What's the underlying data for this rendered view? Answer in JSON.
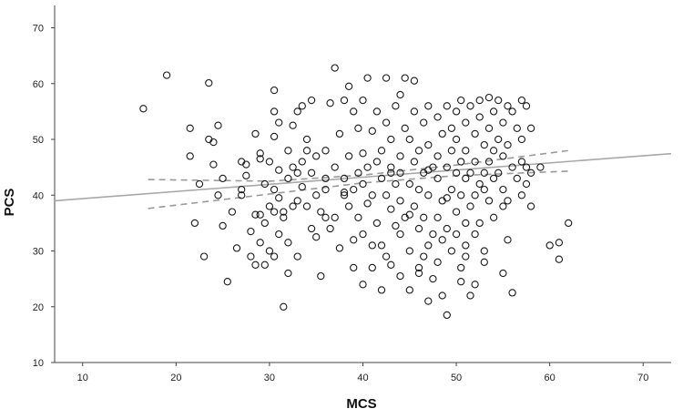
{
  "chart_data": {
    "type": "scatter",
    "title": "",
    "xlabel": "MCS",
    "ylabel": "PCS",
    "xlim": [
      7,
      73
    ],
    "ylim": [
      10,
      74
    ],
    "x_ticks": [
      10,
      20,
      30,
      40,
      50,
      60,
      70
    ],
    "y_ticks": [
      10,
      20,
      30,
      40,
      50,
      60,
      70
    ],
    "grid": false,
    "legend": "none",
    "colors": {
      "point": "#1a1a1a",
      "fit": "#a8a8a8",
      "ci": "#9a9a9a",
      "axis": "#444444"
    },
    "fit_line": {
      "slope": 0.128,
      "intercept": 38.1
    },
    "ci_lines": {
      "upper": [
        [
          17,
          42.8
        ],
        [
          30,
          42.5
        ],
        [
          40,
          43.6
        ],
        [
          50,
          45.4
        ],
        [
          62,
          48.0
        ]
      ],
      "lower": [
        [
          17,
          37.6
        ],
        [
          30,
          40.2
        ],
        [
          40,
          42.2
        ],
        [
          50,
          43.5
        ],
        [
          62,
          44.3
        ]
      ]
    },
    "points": [
      [
        16.5,
        55.5
      ],
      [
        19,
        61.5
      ],
      [
        21.5,
        52
      ],
      [
        21.5,
        47
      ],
      [
        22,
        35
      ],
      [
        22.5,
        42
      ],
      [
        23,
        29
      ],
      [
        23.5,
        50
      ],
      [
        23.5,
        60.1
      ],
      [
        24,
        45.5
      ],
      [
        24,
        49.5
      ],
      [
        24.5,
        52.5
      ],
      [
        25,
        34.5
      ],
      [
        25,
        43
      ],
      [
        25.5,
        24.5
      ],
      [
        26,
        37
      ],
      [
        26.5,
        30.5
      ],
      [
        27,
        40
      ],
      [
        27,
        46
      ],
      [
        27.5,
        45.5
      ],
      [
        27.5,
        43.5
      ],
      [
        28,
        33.5
      ],
      [
        28,
        29
      ],
      [
        28.5,
        36.5
      ],
      [
        28.5,
        27.5
      ],
      [
        28.5,
        51
      ],
      [
        29,
        47.5
      ],
      [
        29,
        46.5
      ],
      [
        29,
        36.5
      ],
      [
        29,
        31.5
      ],
      [
        29.5,
        35
      ],
      [
        29.5,
        27.5
      ],
      [
        29.5,
        42
      ],
      [
        30,
        38
      ],
      [
        30,
        46
      ],
      [
        30,
        30
      ],
      [
        30.5,
        41
      ],
      [
        30.5,
        37
      ],
      [
        30.5,
        29
      ],
      [
        30.5,
        50.5
      ],
      [
        30.5,
        55
      ],
      [
        30.5,
        58.8
      ],
      [
        31,
        53
      ],
      [
        31,
        44.5
      ],
      [
        31,
        39.5
      ],
      [
        31,
        33
      ],
      [
        31.5,
        37
      ],
      [
        31.5,
        36
      ],
      [
        31.5,
        20
      ],
      [
        32,
        48
      ],
      [
        32,
        43
      ],
      [
        32,
        31.5
      ],
      [
        32,
        26
      ],
      [
        32.5,
        52.5
      ],
      [
        32.5,
        45
      ],
      [
        32.5,
        38
      ],
      [
        33,
        55
      ],
      [
        33,
        44
      ],
      [
        33,
        29
      ],
      [
        33.5,
        56
      ],
      [
        33.5,
        46
      ],
      [
        33.5,
        41.5
      ],
      [
        34,
        50
      ],
      [
        34,
        48
      ],
      [
        34,
        38
      ],
      [
        34.5,
        57
      ],
      [
        34.5,
        44
      ],
      [
        34.5,
        34
      ],
      [
        35,
        32.5
      ],
      [
        35,
        40
      ],
      [
        35.5,
        25.5
      ],
      [
        35.5,
        37
      ],
      [
        36,
        48
      ],
      [
        36,
        41
      ],
      [
        36,
        43
      ],
      [
        36.5,
        56.5
      ],
      [
        36.5,
        34
      ],
      [
        37,
        62.8
      ],
      [
        37,
        45
      ],
      [
        37,
        36
      ],
      [
        37.5,
        51
      ],
      [
        37.5,
        30.5
      ],
      [
        38,
        57
      ],
      [
        38,
        43
      ],
      [
        38,
        40
      ],
      [
        38.5,
        59.5
      ],
      [
        38.5,
        47
      ],
      [
        38.5,
        38
      ],
      [
        39,
        55
      ],
      [
        39,
        41
      ],
      [
        39,
        27
      ],
      [
        39.5,
        52
      ],
      [
        39.5,
        44
      ],
      [
        39.5,
        36
      ],
      [
        40,
        57
      ],
      [
        40,
        47.5
      ],
      [
        40,
        42
      ],
      [
        40,
        33
      ],
      [
        40,
        24
      ],
      [
        40.5,
        61
      ],
      [
        40.5,
        45
      ],
      [
        40.5,
        38.5
      ],
      [
        41,
        51.5
      ],
      [
        41,
        40
      ],
      [
        41,
        27
      ],
      [
        41.5,
        55
      ],
      [
        41.5,
        46
      ],
      [
        41.5,
        35
      ],
      [
        42,
        48
      ],
      [
        42,
        43
      ],
      [
        42,
        31
      ],
      [
        42,
        23
      ],
      [
        42.5,
        61
      ],
      [
        42.5,
        53
      ],
      [
        42.5,
        40
      ],
      [
        43,
        50
      ],
      [
        43,
        45
      ],
      [
        43,
        37.5
      ],
      [
        43,
        27.5
      ],
      [
        43.5,
        56
      ],
      [
        43.5,
        42
      ],
      [
        43.5,
        34.5
      ],
      [
        44,
        58
      ],
      [
        44,
        47
      ],
      [
        44,
        44
      ],
      [
        44,
        39
      ],
      [
        44,
        25.5
      ],
      [
        44.5,
        61
      ],
      [
        44.5,
        52
      ],
      [
        44.5,
        36
      ],
      [
        45,
        50
      ],
      [
        45,
        42
      ],
      [
        45,
        30
      ],
      [
        45,
        23
      ],
      [
        45.5,
        60.5
      ],
      [
        45.5,
        55
      ],
      [
        45.5,
        46
      ],
      [
        45.5,
        38
      ],
      [
        46,
        48
      ],
      [
        46,
        41
      ],
      [
        46,
        34
      ],
      [
        46,
        27
      ],
      [
        46.5,
        53
      ],
      [
        46.5,
        44
      ],
      [
        46.5,
        36
      ],
      [
        47,
        56
      ],
      [
        47,
        49
      ],
      [
        47,
        40
      ],
      [
        47,
        31
      ],
      [
        47,
        21
      ],
      [
        47.5,
        45
      ],
      [
        47.5,
        33
      ],
      [
        47.5,
        25
      ],
      [
        48,
        54
      ],
      [
        48,
        47
      ],
      [
        48,
        43
      ],
      [
        48,
        36
      ],
      [
        48,
        28
      ],
      [
        48.5,
        51
      ],
      [
        48.5,
        39
      ],
      [
        48.5,
        22
      ],
      [
        49,
        56
      ],
      [
        49,
        45
      ],
      [
        49,
        34
      ],
      [
        49,
        18.5
      ],
      [
        49.5,
        52
      ],
      [
        49.5,
        48
      ],
      [
        49.5,
        41
      ],
      [
        49.5,
        30
      ],
      [
        50,
        55
      ],
      [
        50,
        50
      ],
      [
        50,
        44
      ],
      [
        50,
        37
      ],
      [
        50,
        33
      ],
      [
        50.5,
        57
      ],
      [
        50.5,
        46
      ],
      [
        50.5,
        40
      ],
      [
        50.5,
        27
      ],
      [
        51,
        53
      ],
      [
        51,
        48
      ],
      [
        51,
        43
      ],
      [
        51,
        35
      ],
      [
        51,
        29
      ],
      [
        51.5,
        56
      ],
      [
        51.5,
        44
      ],
      [
        51.5,
        38
      ],
      [
        51.5,
        22
      ],
      [
        52,
        51
      ],
      [
        52,
        46
      ],
      [
        52,
        40
      ],
      [
        52,
        33
      ],
      [
        52.5,
        57
      ],
      [
        52.5,
        54
      ],
      [
        52.5,
        42
      ],
      [
        52.5,
        35
      ],
      [
        53,
        49
      ],
      [
        53,
        44
      ],
      [
        53,
        30
      ],
      [
        53.5,
        57.5
      ],
      [
        53.5,
        52
      ],
      [
        53.5,
        46
      ],
      [
        53.5,
        39
      ],
      [
        54,
        55
      ],
      [
        54,
        48
      ],
      [
        54,
        43
      ],
      [
        54,
        36
      ],
      [
        54.5,
        57
      ],
      [
        54.5,
        50
      ],
      [
        54.5,
        44
      ],
      [
        55,
        53
      ],
      [
        55,
        47
      ],
      [
        55,
        41
      ],
      [
        55,
        26
      ],
      [
        55.5,
        56
      ],
      [
        55.5,
        49
      ],
      [
        55.5,
        39
      ],
      [
        55.5,
        32
      ],
      [
        56,
        55
      ],
      [
        56,
        45
      ],
      [
        56,
        22.5
      ],
      [
        56.5,
        52
      ],
      [
        56.5,
        43
      ],
      [
        57,
        57
      ],
      [
        57,
        50
      ],
      [
        57,
        46
      ],
      [
        57,
        40
      ],
      [
        57.5,
        56
      ],
      [
        57.5,
        45
      ],
      [
        58,
        52
      ],
      [
        58,
        44
      ],
      [
        58,
        38
      ],
      [
        59,
        45
      ],
      [
        60,
        31
      ],
      [
        61,
        31.5
      ],
      [
        61,
        28.5
      ],
      [
        62,
        35
      ],
      [
        52,
        24
      ],
      [
        46,
        26
      ],
      [
        41,
        31
      ],
      [
        35,
        47
      ],
      [
        33,
        39
      ],
      [
        27,
        41
      ],
      [
        24.5,
        40
      ],
      [
        36,
        36
      ],
      [
        38,
        40.5
      ],
      [
        43,
        44
      ],
      [
        47,
        44.5
      ],
      [
        53,
        41
      ],
      [
        55,
        38
      ],
      [
        57.5,
        42
      ],
      [
        48.5,
        32
      ],
      [
        44,
        33
      ],
      [
        39,
        32
      ],
      [
        50.5,
        24.5
      ],
      [
        46.5,
        29
      ],
      [
        42.5,
        29
      ],
      [
        53,
        28
      ],
      [
        51,
        31
      ],
      [
        45,
        36.5
      ],
      [
        49,
        39.5
      ]
    ]
  }
}
